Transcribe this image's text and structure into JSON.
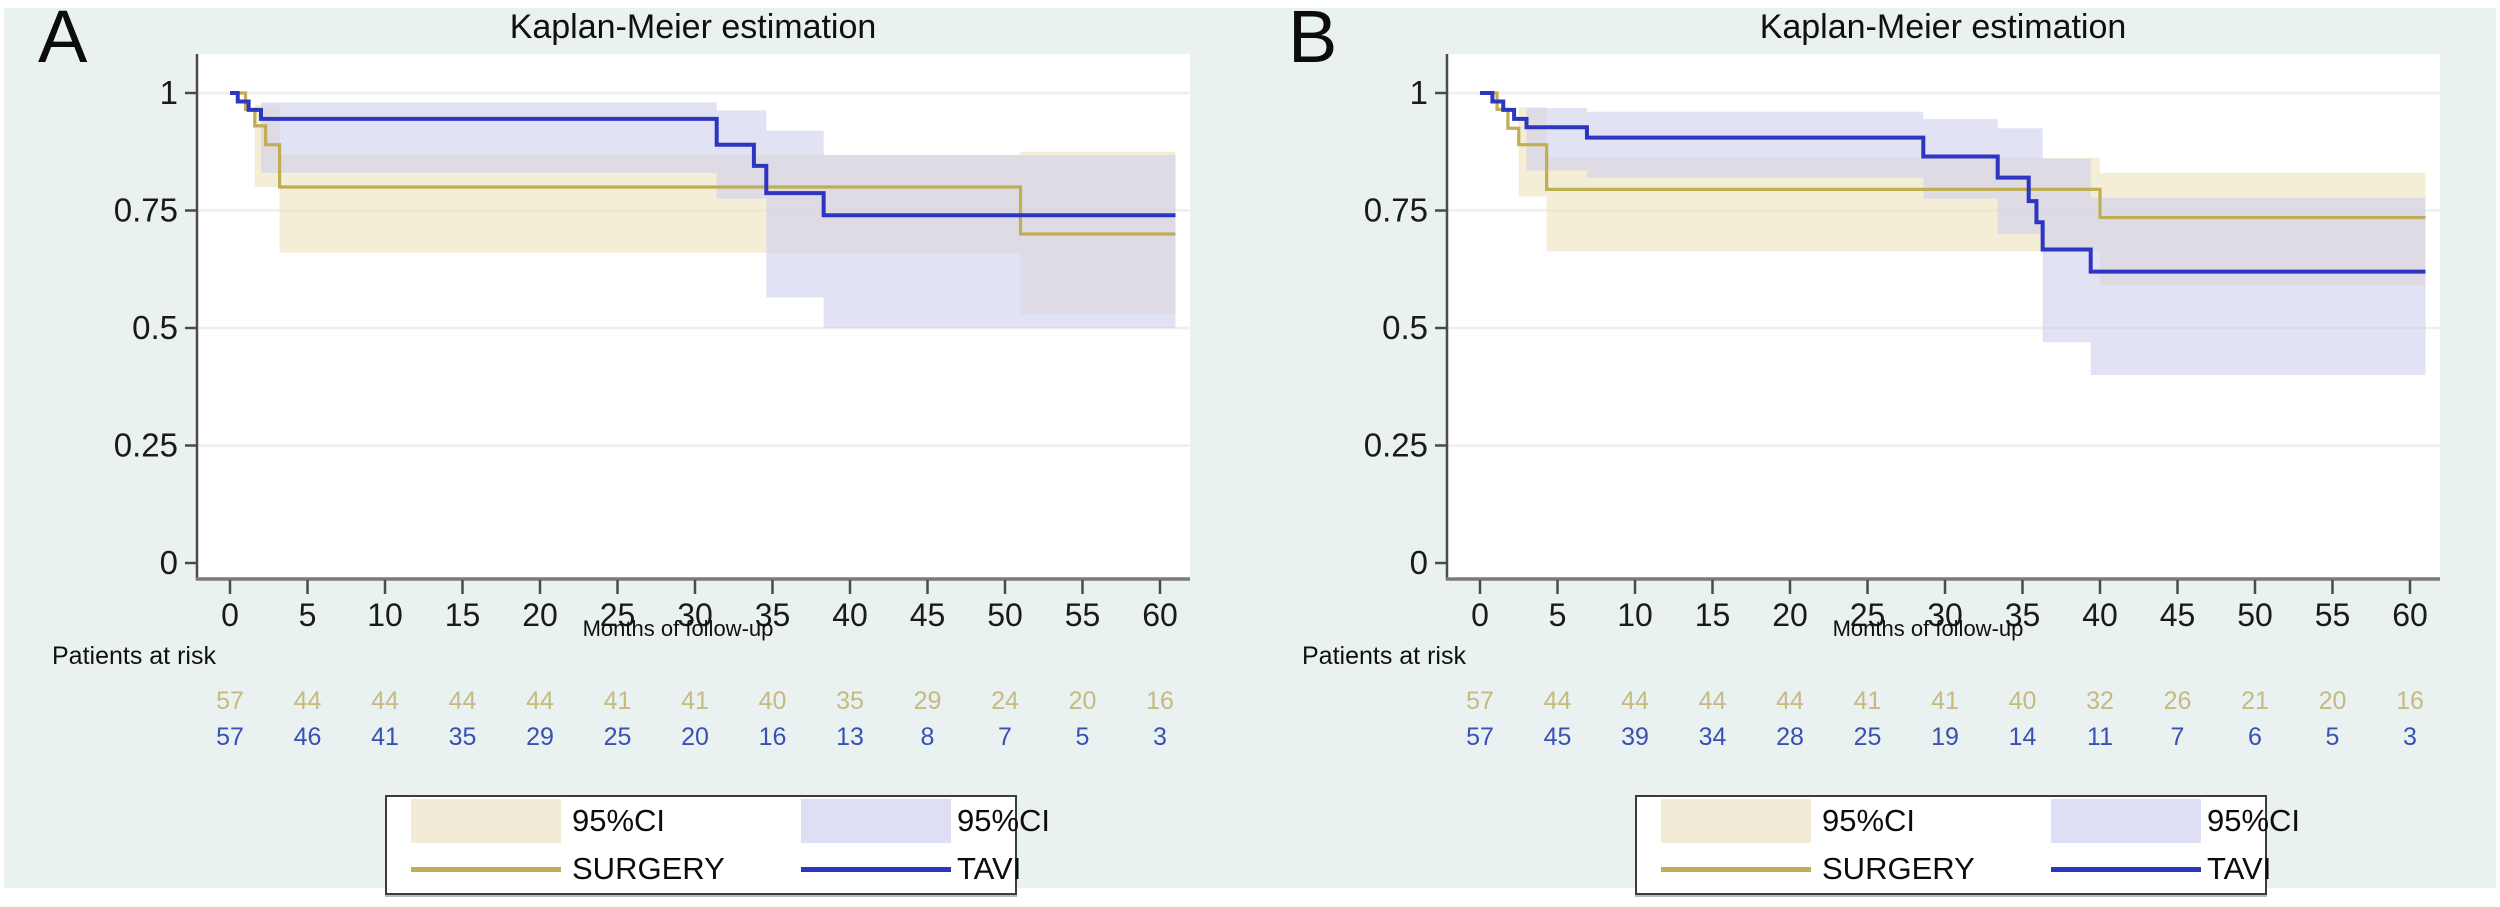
{
  "colors": {
    "background_outer": "#e9f1f1",
    "plot_background": "#ffffff",
    "gridline": "#f0eeea",
    "axis": "#4a4a4a",
    "x_axis_line": "#7a7a7a",
    "tick_label": "#1a1a1a",
    "surgery_line": "#bfae55",
    "surgery_ci_fill": "rgba(236,226,186,0.60)",
    "surgery_swatch": "#f2ecd7",
    "surgery_risk_text": "#c6ba7f",
    "tavi_line": "#2e35c1",
    "tavi_ci_fill": "rgba(206,206,238,0.60)",
    "tavi_swatch": "#dedef5",
    "tavi_risk_text": "#3950b4"
  },
  "legend": {
    "ci_surgery_label": "95%CI",
    "ci_tavi_label": "95%CI",
    "surgery_label": "SURGERY",
    "tavi_label": "TAVI"
  },
  "chart_data": {
    "type": "line",
    "subtype": "kaplan-meier-step",
    "x_ticks": [
      0,
      5,
      10,
      15,
      20,
      25,
      30,
      35,
      40,
      45,
      50,
      55,
      60
    ],
    "y_ticks": [
      0,
      0.25,
      0.5,
      0.75,
      1
    ],
    "y_tick_labels": [
      "0",
      "0.25",
      "0.5",
      "0.75",
      "1"
    ],
    "xlim": [
      0,
      61
    ],
    "ylim": [
      0,
      1
    ],
    "grid": true,
    "legend_position": "bottom-center",
    "panels": [
      {
        "label": "A",
        "title": "Kaplan-Meier estimation",
        "xlabel": "Months of follow-up",
        "at_risk_label": "Patients at risk",
        "series": [
          {
            "name": "SURGERY",
            "steps": [
              [
                0,
                1
              ],
              [
                1.0,
                0.965
              ],
              [
                1.6,
                0.93
              ],
              [
                2.3,
                0.89
              ],
              [
                3.2,
                0.8
              ],
              [
                51,
                0.7
              ]
            ],
            "end": 61,
            "ci": [
              [
                1.6,
                0.975,
                0.8
              ],
              [
                3.2,
                0.868,
                0.66
              ],
              [
                51,
                0.875,
                0.53
              ]
            ]
          },
          {
            "name": "TAVI",
            "steps": [
              [
                0,
                1
              ],
              [
                0.5,
                0.982
              ],
              [
                1.2,
                0.964
              ],
              [
                2.0,
                0.945
              ],
              [
                31.4,
                0.89
              ],
              [
                33.8,
                0.845
              ],
              [
                34.6,
                0.787
              ],
              [
                38.3,
                0.74
              ]
            ],
            "end": 61,
            "ci": [
              [
                2.0,
                0.98,
                0.83
              ],
              [
                31.4,
                0.963,
                0.775
              ],
              [
                34.6,
                0.92,
                0.565
              ],
              [
                38.3,
                0.868,
                0.5
              ]
            ]
          }
        ],
        "at_risk": [
          {
            "name": "SURGERY",
            "values": [
              57,
              44,
              44,
              44,
              44,
              41,
              41,
              40,
              35,
              29,
              24,
              20,
              16
            ]
          },
          {
            "name": "TAVI",
            "values": [
              57,
              46,
              41,
              35,
              29,
              25,
              20,
              16,
              13,
              8,
              7,
              5,
              3
            ]
          }
        ]
      },
      {
        "label": "B",
        "title": "Kaplan-Meier estimation",
        "xlabel": "Months of follow-up",
        "at_risk_label": "Patients at risk",
        "series": [
          {
            "name": "SURGERY",
            "steps": [
              [
                0,
                1
              ],
              [
                1.1,
                0.965
              ],
              [
                1.8,
                0.925
              ],
              [
                2.5,
                0.89
              ],
              [
                4.3,
                0.795
              ],
              [
                40,
                0.735
              ]
            ],
            "end": 61,
            "ci": [
              [
                2.5,
                0.97,
                0.78
              ],
              [
                4.3,
                0.862,
                0.663
              ],
              [
                40,
                0.83,
                0.59
              ]
            ]
          },
          {
            "name": "TAVI",
            "steps": [
              [
                0,
                1
              ],
              [
                0.8,
                0.982
              ],
              [
                1.5,
                0.964
              ],
              [
                2.2,
                0.945
              ],
              [
                3.0,
                0.927
              ],
              [
                6.9,
                0.905
              ],
              [
                28.6,
                0.865
              ],
              [
                33.4,
                0.82
              ],
              [
                35.4,
                0.77
              ],
              [
                35.9,
                0.725
              ],
              [
                36.3,
                0.667
              ],
              [
                39.4,
                0.62
              ]
            ],
            "end": 61,
            "ci": [
              [
                3.0,
                0.968,
                0.835
              ],
              [
                6.9,
                0.96,
                0.82
              ],
              [
                28.6,
                0.945,
                0.775
              ],
              [
                33.4,
                0.925,
                0.7
              ],
              [
                36.3,
                0.86,
                0.47
              ],
              [
                39.4,
                0.777,
                0.4
              ]
            ]
          }
        ],
        "at_risk": [
          {
            "name": "SURGERY",
            "values": [
              57,
              44,
              44,
              44,
              44,
              41,
              41,
              40,
              32,
              26,
              21,
              20,
              16
            ]
          },
          {
            "name": "TAVI",
            "values": [
              57,
              45,
              39,
              34,
              28,
              25,
              19,
              14,
              11,
              7,
              6,
              5,
              3
            ]
          }
        ]
      }
    ]
  }
}
